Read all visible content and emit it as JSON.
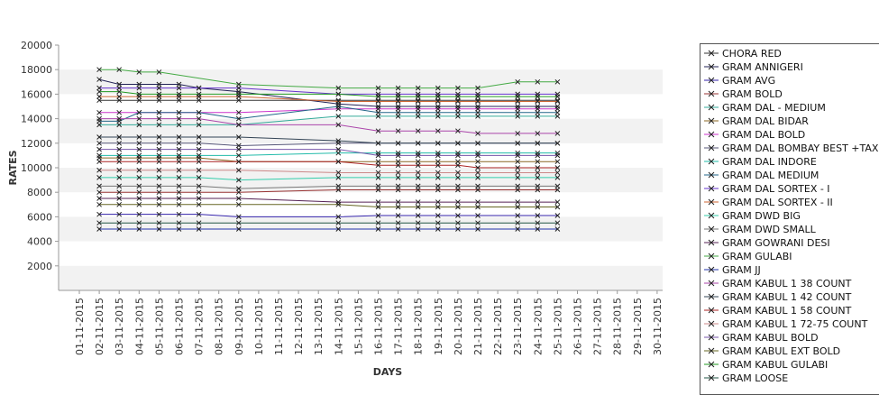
{
  "chart_data": {
    "type": "line",
    "title": "",
    "xlabel": "DAYS",
    "ylabel": "RATES",
    "ylim": [
      0,
      20000
    ],
    "y_ticks": [
      2000,
      4000,
      6000,
      8000,
      10000,
      12000,
      14000,
      16000,
      18000,
      20000
    ],
    "y_tick_labels": [
      "2000",
      "4000",
      "6000",
      "8000",
      "10000",
      "12000",
      "14000",
      "16000",
      "18000",
      "20000"
    ],
    "categories": [
      "01-11-2015",
      "02-11-2015",
      "03-11-2015",
      "04-11-2015",
      "05-11-2015",
      "06-11-2015",
      "07-11-2015",
      "08-11-2015",
      "09-11-2015",
      "10-11-2015",
      "11-11-2015",
      "12-11-2015",
      "13-11-2015",
      "14-11-2015",
      "15-11-2015",
      "16-11-2015",
      "17-11-2015",
      "18-11-2015",
      "19-11-2015",
      "20-11-2015",
      "21-11-2015",
      "22-11-2015",
      "23-11-2015",
      "24-11-2015",
      "25-11-2015",
      "26-11-2015",
      "27-11-2015",
      "28-11-2015",
      "29-11-2015",
      "30-11-2015"
    ],
    "grid": "alternating horizontal bands",
    "legend_position": "right",
    "series": [
      {
        "name": "CHORA RED",
        "color": "#333333",
        "values": [
          null,
          15500,
          15500,
          15500,
          15500,
          15500,
          15500,
          null,
          15500,
          null,
          null,
          null,
          null,
          15500,
          null,
          15500,
          15500,
          15500,
          15500,
          15500,
          15500,
          null,
          15500,
          15500,
          15500,
          null,
          null,
          null,
          null,
          null
        ]
      },
      {
        "name": "GRAM ANNIGERI",
        "color": "#222255",
        "values": [
          null,
          17200,
          16800,
          16800,
          16800,
          16800,
          16500,
          null,
          16200,
          null,
          null,
          null,
          null,
          15200,
          null,
          15000,
          15000,
          15000,
          15000,
          15000,
          15000,
          null,
          15000,
          15000,
          15000,
          null,
          null,
          null,
          null,
          null
        ]
      },
      {
        "name": "GRAM AVG",
        "color": "#3322aa",
        "values": [
          null,
          6200,
          6200,
          6200,
          6200,
          6200,
          6200,
          null,
          6000,
          null,
          null,
          null,
          null,
          6000,
          null,
          6100,
          6100,
          6100,
          6100,
          6100,
          6100,
          null,
          6100,
          6100,
          6100,
          null,
          null,
          null,
          null,
          null
        ]
      },
      {
        "name": "GRAM BOLD",
        "color": "#993333",
        "values": [
          null,
          8000,
          8000,
          8000,
          8000,
          8000,
          8000,
          null,
          8000,
          null,
          null,
          null,
          null,
          8200,
          null,
          8200,
          8200,
          8200,
          8200,
          8200,
          8200,
          null,
          8200,
          8200,
          8200,
          null,
          null,
          null,
          null,
          null
        ]
      },
      {
        "name": "GRAM DAL - MEDIUM",
        "color": "#33aa99",
        "values": [
          null,
          13500,
          13500,
          13500,
          13500,
          13500,
          13500,
          null,
          13500,
          null,
          null,
          null,
          null,
          14200,
          null,
          14200,
          14200,
          14200,
          14200,
          14200,
          14200,
          null,
          14200,
          14200,
          14200,
          null,
          null,
          null,
          null,
          null
        ]
      },
      {
        "name": "GRAM DAL BIDAR",
        "color": "#886622",
        "values": [
          null,
          10800,
          10800,
          10800,
          10800,
          10800,
          10800,
          null,
          10500,
          null,
          null,
          null,
          null,
          10500,
          null,
          10500,
          10500,
          10500,
          10500,
          10500,
          10500,
          null,
          10500,
          10500,
          10500,
          null,
          null,
          null,
          null,
          null
        ]
      },
      {
        "name": "GRAM DAL BOLD",
        "color": "#cc33cc",
        "values": [
          null,
          14500,
          14500,
          14500,
          14500,
          14500,
          14500,
          null,
          14500,
          null,
          null,
          null,
          null,
          14800,
          null,
          14800,
          14800,
          14800,
          14800,
          14800,
          14800,
          null,
          14800,
          14800,
          14800,
          null,
          null,
          null,
          null,
          null
        ]
      },
      {
        "name": "GRAM DAL BOMBAY BEST +TAX",
        "color": "#555577",
        "values": [
          null,
          12000,
          12000,
          12000,
          12000,
          12000,
          12000,
          null,
          11800,
          null,
          null,
          null,
          null,
          12000,
          null,
          12000,
          12000,
          12000,
          12000,
          12000,
          12000,
          null,
          12000,
          12000,
          12000,
          null,
          null,
          null,
          null,
          null
        ]
      },
      {
        "name": "GRAM DAL INDORE",
        "color": "#22bbaa",
        "values": [
          null,
          11000,
          11000,
          11000,
          11000,
          11000,
          11000,
          null,
          11000,
          null,
          null,
          null,
          null,
          11200,
          null,
          11200,
          11200,
          11200,
          11200,
          11200,
          11200,
          null,
          11200,
          11200,
          11200,
          null,
          null,
          null,
          null,
          null
        ]
      },
      {
        "name": "GRAM DAL MEDIUM",
        "color": "#226688",
        "values": [
          null,
          13800,
          13800,
          14500,
          14500,
          14500,
          14500,
          null,
          14000,
          null,
          null,
          null,
          null,
          15000,
          null,
          14500,
          14500,
          14500,
          14500,
          14500,
          14500,
          null,
          14500,
          14500,
          14500,
          null,
          null,
          null,
          null,
          null
        ]
      },
      {
        "name": "GRAM DAL SORTEX - I",
        "color": "#6633cc",
        "values": [
          null,
          16500,
          16500,
          16500,
          16500,
          16500,
          16500,
          null,
          16500,
          null,
          null,
          null,
          null,
          16000,
          null,
          16000,
          16000,
          16000,
          16000,
          16000,
          16000,
          null,
          16000,
          16000,
          16000,
          null,
          null,
          null,
          null,
          null
        ]
      },
      {
        "name": "GRAM DAL SORTEX - II",
        "color": "#cc6633",
        "values": [
          null,
          15800,
          15800,
          15800,
          15800,
          15800,
          15800,
          null,
          15800,
          null,
          null,
          null,
          null,
          15400,
          null,
          15400,
          15400,
          15400,
          15400,
          15400,
          15400,
          null,
          15400,
          15400,
          15400,
          null,
          null,
          null,
          null,
          null
        ]
      },
      {
        "name": "GRAM DWD BIG",
        "color": "#33ccaa",
        "values": [
          null,
          9200,
          9200,
          9200,
          9200,
          9200,
          9200,
          null,
          9000,
          null,
          null,
          null,
          null,
          9200,
          null,
          9200,
          9200,
          9200,
          9200,
          9200,
          9200,
          null,
          9200,
          9200,
          9200,
          null,
          null,
          null,
          null,
          null
        ]
      },
      {
        "name": "GRAM DWD SMALL",
        "color": "#777777",
        "values": [
          null,
          8500,
          8500,
          8500,
          8500,
          8500,
          8500,
          null,
          8300,
          null,
          null,
          null,
          null,
          8500,
          null,
          8500,
          8500,
          8500,
          8500,
          8500,
          8500,
          null,
          8500,
          8500,
          8500,
          null,
          null,
          null,
          null,
          null
        ]
      },
      {
        "name": "GRAM GOWRANI DESI",
        "color": "#552255",
        "values": [
          null,
          7500,
          7500,
          7500,
          7500,
          7500,
          7500,
          null,
          7500,
          null,
          null,
          null,
          null,
          7200,
          null,
          7200,
          7200,
          7200,
          7200,
          7200,
          7200,
          null,
          7200,
          7200,
          7200,
          null,
          null,
          null,
          null,
          null
        ]
      },
      {
        "name": "GRAM GULABI",
        "color": "#44aa44",
        "values": [
          null,
          18000,
          18000,
          17800,
          17800,
          null,
          null,
          null,
          16800,
          null,
          null,
          null,
          null,
          16500,
          null,
          16500,
          16500,
          16500,
          16500,
          16500,
          16500,
          null,
          17000,
          17000,
          17000,
          null,
          null,
          null,
          null,
          null
        ]
      },
      {
        "name": "GRAM JJ",
        "color": "#2233aa",
        "values": [
          null,
          5000,
          5000,
          5000,
          5000,
          5000,
          5000,
          null,
          5000,
          null,
          null,
          null,
          null,
          5000,
          null,
          5000,
          5000,
          5000,
          5000,
          5000,
          5000,
          null,
          5000,
          5000,
          5000,
          null,
          null,
          null,
          null,
          null
        ]
      },
      {
        "name": "GRAM KABUL 1 38 COUNT",
        "color": "#aa44aa",
        "values": [
          null,
          14000,
          14000,
          14000,
          14000,
          14000,
          14000,
          null,
          13500,
          null,
          null,
          null,
          null,
          13500,
          null,
          13000,
          13000,
          13000,
          13000,
          13000,
          12800,
          null,
          12800,
          12800,
          12800,
          null,
          null,
          null,
          null,
          null
        ]
      },
      {
        "name": "GRAM KABUL 1 42 COUNT",
        "color": "#334455",
        "values": [
          null,
          12500,
          12500,
          12500,
          12500,
          12500,
          12500,
          null,
          12500,
          null,
          null,
          null,
          null,
          12200,
          null,
          12000,
          12000,
          12000,
          12000,
          12000,
          12000,
          null,
          12000,
          12000,
          12000,
          null,
          null,
          null,
          null,
          null
        ]
      },
      {
        "name": "GRAM KABUL 1 58 COUNT",
        "color": "#aa2222",
        "values": [
          null,
          10500,
          10500,
          10500,
          10500,
          10500,
          10500,
          null,
          10500,
          null,
          null,
          null,
          null,
          10500,
          null,
          10200,
          10200,
          10200,
          10200,
          10200,
          10000,
          null,
          10000,
          10000,
          10000,
          null,
          null,
          null,
          null,
          null
        ]
      },
      {
        "name": "GRAM KABUL 1 72-75 COUNT",
        "color": "#cc8888",
        "values": [
          null,
          9800,
          9800,
          9800,
          9800,
          9800,
          9800,
          null,
          9800,
          null,
          null,
          null,
          null,
          9600,
          null,
          9600,
          9600,
          9600,
          9600,
          9600,
          9600,
          null,
          9600,
          9600,
          9600,
          null,
          null,
          null,
          null,
          null
        ]
      },
      {
        "name": "GRAM KABUL BOLD",
        "color": "#7755aa",
        "values": [
          null,
          11500,
          11500,
          11500,
          11500,
          11500,
          11500,
          null,
          11500,
          null,
          null,
          null,
          null,
          11500,
          null,
          11000,
          11000,
          11000,
          11000,
          11000,
          11000,
          null,
          11000,
          11000,
          11000,
          null,
          null,
          null,
          null,
          null
        ]
      },
      {
        "name": "GRAM KABUL EXT BOLD",
        "color": "#666622",
        "values": [
          null,
          7000,
          7000,
          7000,
          7000,
          7000,
          7000,
          null,
          7000,
          null,
          null,
          null,
          null,
          7000,
          null,
          6800,
          6800,
          6800,
          6800,
          6800,
          6800,
          null,
          6800,
          6800,
          6800,
          null,
          null,
          null,
          null,
          null
        ]
      },
      {
        "name": "GRAM KABUL GULABI",
        "color": "#229922",
        "values": [
          null,
          16200,
          16200,
          16000,
          16000,
          16000,
          16000,
          null,
          16000,
          null,
          null,
          null,
          null,
          16000,
          null,
          15800,
          15800,
          15800,
          15800,
          15800,
          15800,
          null,
          15800,
          15800,
          15800,
          null,
          null,
          null,
          null,
          null
        ]
      },
      {
        "name": "GRAM LOOSE",
        "color": "#225544",
        "values": [
          null,
          5500,
          5500,
          5500,
          5500,
          5500,
          5500,
          null,
          5500,
          null,
          null,
          null,
          null,
          5500,
          null,
          5500,
          5500,
          5500,
          5500,
          5500,
          5500,
          null,
          5500,
          5500,
          5500,
          null,
          null,
          null,
          null,
          null
        ]
      }
    ],
    "unlisted_series_colors": [
      "#55cc55",
      "#44cccc",
      "#5566cc",
      "#88cc22",
      "#aa66dd",
      "#66aaaa",
      "#999999"
    ]
  }
}
